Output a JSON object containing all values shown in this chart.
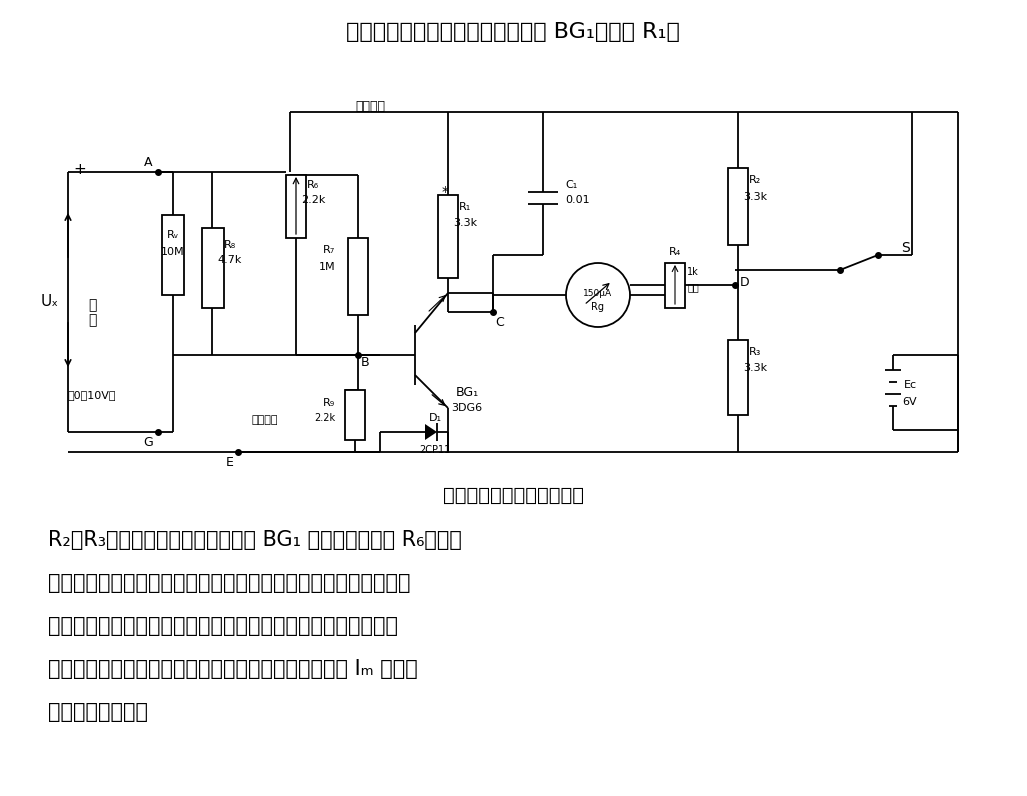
{
  "title_top": "是单管桥式直流电压表。由晶体管 BG₁、电阻 R₁、",
  "caption": "简单的单管直流电压表电路",
  "body_text": [
    "R₂、R₃分别组成电桥的四臂。调节 BG₁ 的基极偏置电阻 R₆，使电",
    "桥平衡，表头读数为零。当在电路的输入端接上被测电压信号时，",
    "电桥失去平衡，表头便有电流流过。如果使晶体管的起始工作点",
    "设置在其特性曲线线性区域的起点，则流过表头的电流 Iₘ 与被测",
    "输入电压成正比。"
  ],
  "bg_color": "#ffffff",
  "line_color": "#000000",
  "font_size_title": 16,
  "font_size_caption": 14,
  "font_size_body": 15
}
